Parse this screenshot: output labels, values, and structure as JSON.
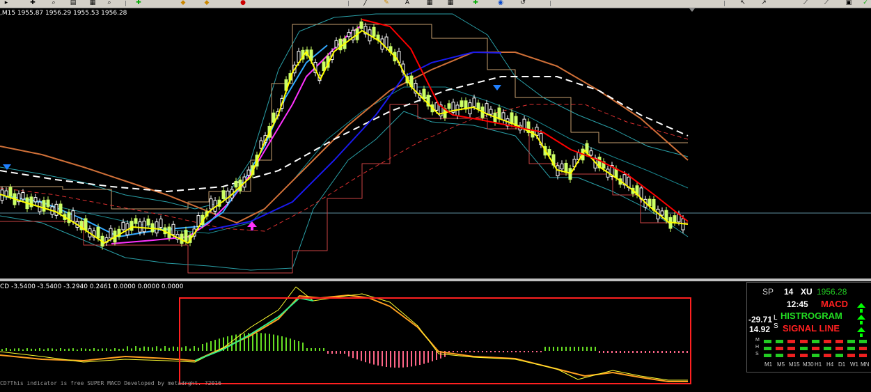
{
  "main_chart": {
    "header": ",M15  1955.87 1956.29 1955.53 1956.28",
    "current_price_line": 1956.28
  },
  "sub_chart": {
    "header": "CD -3.5400 -3.5400 -3.2940 0.2461 0.0000 0.0000 0.0000",
    "footer": "CD?This indicator is free SUPER MACD Developed by metadrght. ?2016"
  },
  "colors": {
    "background": "#000000",
    "bull_candle": "#ccff66",
    "bear_candle": "#ffffff",
    "fast_ma": "#ffff00",
    "slow_ma": "#ff0000",
    "magenta_ma": "#ff33ff",
    "blue_ma": "#0000ee",
    "signal_box": "#ff2020",
    "hist_up": "#66dd22",
    "hist_down": "#ff6688"
  },
  "panel": {
    "sp_label": "SP",
    "sp_value": "14",
    "xu_label": "XU",
    "price": "1956.28",
    "time": "12:45",
    "val1": "-29.71",
    "val2": "14.92",
    "l_label": "L",
    "s_label": "S",
    "macd_label": "MACD",
    "histogram_label": "HISTROGRAM",
    "signal_label": "SIGNAL LINE",
    "row_labels": [
      "M",
      "H",
      "S"
    ],
    "timeframes": [
      "M1",
      "M5",
      "M15",
      "M30",
      "H1",
      "H4",
      "D1",
      "W1",
      "MN"
    ],
    "grid": [
      [
        "g",
        "g",
        "r",
        "r",
        "g",
        "r",
        "r",
        "g",
        "g"
      ],
      [
        "g",
        "r",
        "r",
        "g",
        "r",
        "g",
        "r",
        "g",
        "r"
      ],
      [
        "g",
        "g",
        "r",
        "r",
        "g",
        "r",
        "g",
        "r",
        "r"
      ]
    ]
  }
}
